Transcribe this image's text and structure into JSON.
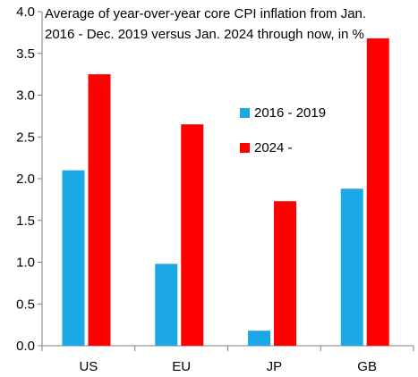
{
  "chart_data": {
    "type": "bar",
    "title_lines": [
      "Average of year-over-year core CPI inflation from Jan.",
      "2016 - Dec. 2019 versus Jan. 2024 through now, in %"
    ],
    "categories": [
      "US",
      "EU",
      "JP",
      "GB"
    ],
    "series": [
      {
        "name": "2016 - 2019",
        "color": "#1aa9e6",
        "values": [
          2.1,
          0.98,
          0.18,
          1.88
        ]
      },
      {
        "name": "2024 -",
        "color": "#ff0000",
        "values": [
          3.25,
          2.65,
          1.73,
          3.68
        ]
      }
    ],
    "y_ticks": [
      "0.0",
      "0.5",
      "1.0",
      "1.5",
      "2.0",
      "2.5",
      "3.0",
      "3.5",
      "4.0"
    ],
    "ylim": [
      0,
      4
    ],
    "xlabel": "",
    "ylabel": "",
    "grid": false,
    "legend_position": "center-right"
  }
}
